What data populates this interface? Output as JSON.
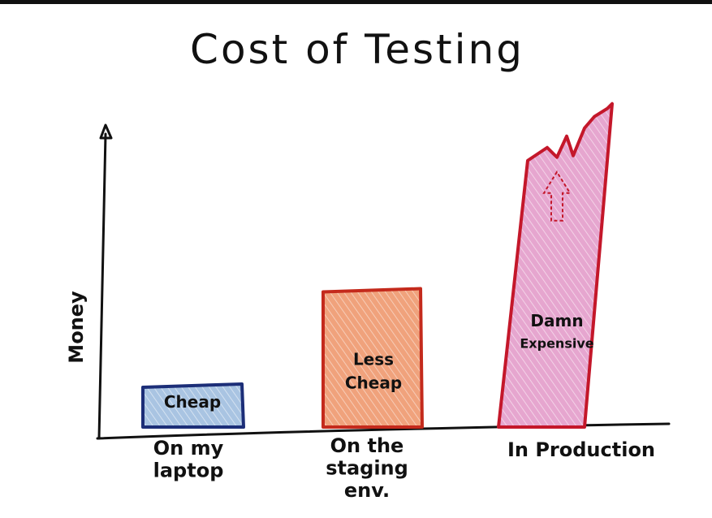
{
  "chart_data": {
    "type": "bar",
    "title": "Cost of Testing",
    "xlabel": "",
    "ylabel": "Money",
    "categories": [
      "On my\nlaptop",
      "On the\nstaging\nenv.",
      "In Production"
    ],
    "bar_labels": [
      "Cheap",
      "Less\nCheap",
      "Damn\nExpensive"
    ],
    "values": [
      1,
      3.3,
      7.8
    ],
    "ylim": [
      0,
      8.5
    ],
    "grid": false,
    "legend": "none",
    "bar_fill_colors": [
      "#a9c4e2",
      "#f0a27c",
      "#e6a6cf"
    ],
    "bar_stroke_colors": [
      "#1c2e78",
      "#c42a1c",
      "#c4172a"
    ],
    "extends_beyond_axis": [
      false,
      false,
      true
    ],
    "annotation_icon": "dashed-up-arrow-icon"
  }
}
